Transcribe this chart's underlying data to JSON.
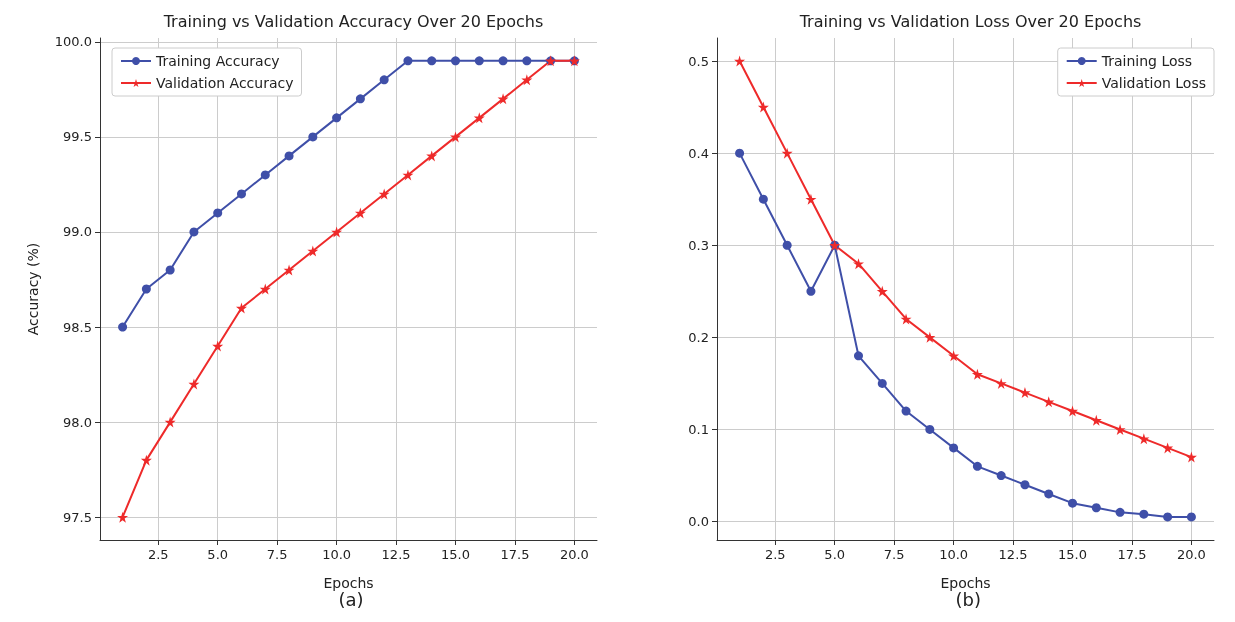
{
  "chart_data": [
    {
      "type": "line",
      "title": "Training vs Validation Accuracy Over 20 Epochs",
      "xlabel": "Epochs",
      "ylabel": "Accuracy (%)",
      "annotations": [
        "(a)"
      ],
      "x": [
        1,
        2,
        3,
        4,
        5,
        6,
        7,
        8,
        9,
        10,
        11,
        12,
        13,
        14,
        15,
        16,
        17,
        18,
        19,
        20
      ],
      "series": [
        {
          "name": "Training Accuracy",
          "color": "#3f4fa8",
          "marker": "circle",
          "values": [
            98.5,
            98.7,
            98.8,
            99.0,
            99.1,
            99.2,
            99.3,
            99.4,
            99.5,
            99.6,
            99.7,
            99.8,
            99.9,
            99.9,
            99.9,
            99.9,
            99.9,
            99.9,
            99.9,
            99.9
          ]
        },
        {
          "name": "Validation Accuracy",
          "color": "#ee2a2a",
          "marker": "star",
          "values": [
            97.5,
            97.8,
            98.0,
            98.2,
            98.4,
            98.6,
            98.7,
            98.8,
            98.9,
            99.0,
            99.1,
            99.2,
            99.3,
            99.4,
            99.5,
            99.6,
            99.7,
            99.8,
            99.9,
            99.9
          ]
        }
      ],
      "xlim": [
        0.05,
        20.95
      ],
      "xticks": [
        {
          "value": 2.5,
          "label": "2.5"
        },
        {
          "value": 5,
          "label": "5.0"
        },
        {
          "value": 7.5,
          "label": "7.5"
        },
        {
          "value": 10,
          "label": "10.0"
        },
        {
          "value": 12.5,
          "label": "12.5"
        },
        {
          "value": 15,
          "label": "15.0"
        },
        {
          "value": 17.5,
          "label": "17.5"
        },
        {
          "value": 20,
          "label": "20.0"
        }
      ],
      "ylim": [
        97.38,
        100.02
      ],
      "yticks": [
        97.5,
        {
          "value": 98,
          "label": "98.0"
        },
        98.5,
        {
          "value": 99,
          "label": "99.0"
        },
        99.5,
        {
          "value": 100,
          "label": "100.0"
        }
      ],
      "grid": true,
      "legend": "top left",
      "line_style": "solid"
    },
    {
      "type": "line",
      "title": "Training vs Validation Loss Over 20 Epochs",
      "xlabel": "Epochs",
      "annotations": [
        "(b)"
      ],
      "x": [
        1,
        2,
        3,
        4,
        5,
        6,
        7,
        8,
        9,
        10,
        11,
        12,
        13,
        14,
        15,
        16,
        17,
        18,
        19,
        20
      ],
      "series": [
        {
          "name": "Training Loss",
          "color": "#3f4fa8",
          "marker": "circle",
          "values": [
            0.4,
            0.35,
            0.3,
            0.25,
            0.3,
            0.18,
            0.15,
            0.12,
            0.1,
            0.08,
            0.06,
            0.05,
            0.04,
            0.03,
            0.02,
            0.015,
            0.01,
            0.008,
            0.005,
            0.005
          ]
        },
        {
          "name": "Validation Loss",
          "color": "#ee2a2a",
          "marker": "star",
          "values": [
            0.5,
            0.45,
            0.4,
            0.35,
            0.3,
            0.28,
            0.25,
            0.22,
            0.2,
            0.18,
            0.16,
            0.15,
            0.14,
            0.13,
            0.12,
            0.11,
            0.1,
            0.09,
            0.08,
            0.07
          ]
        }
      ],
      "xlim": [
        0.05,
        20.95
      ],
      "xticks": [
        {
          "value": 2.5,
          "label": "2.5"
        },
        {
          "value": 5,
          "label": "5.0"
        },
        {
          "value": 7.5,
          "label": "7.5"
        },
        {
          "value": 10,
          "label": "10.0"
        },
        {
          "value": 12.5,
          "label": "12.5"
        },
        {
          "value": 15,
          "label": "15.0"
        },
        {
          "value": 17.5,
          "label": "17.5"
        },
        {
          "value": 20,
          "label": "20.0"
        }
      ],
      "ylim": [
        -0.02,
        0.525
      ],
      "yticks": [
        {
          "value": 0,
          "label": "0.0"
        },
        0.1,
        0.2,
        0.3,
        0.4,
        0.5
      ],
      "grid": true,
      "legend": "top right",
      "line_style": "solid"
    }
  ]
}
